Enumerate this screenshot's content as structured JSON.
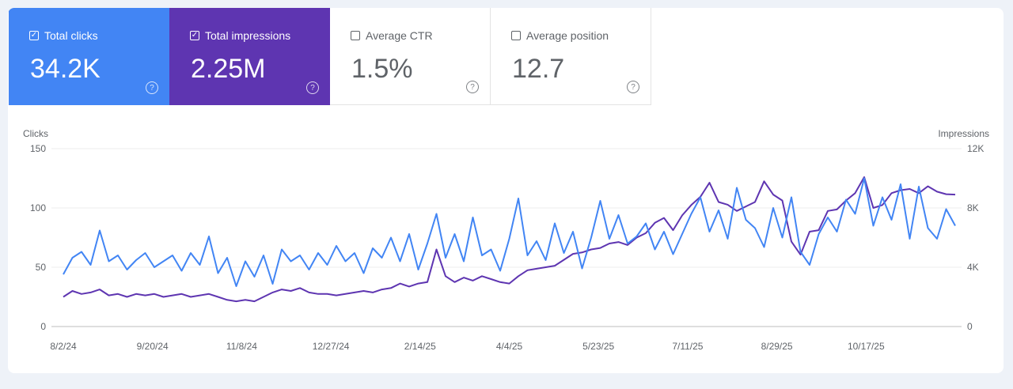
{
  "metrics": [
    {
      "label": "Total clicks",
      "value": "34.2K",
      "checked": true,
      "color": "#4285f4"
    },
    {
      "label": "Total impressions",
      "value": "2.25M",
      "checked": true,
      "color": "#5e35b1"
    },
    {
      "label": "Average CTR",
      "value": "1.5%",
      "checked": false
    },
    {
      "label": "Average position",
      "value": "12.7",
      "checked": false
    }
  ],
  "icons": {
    "checked": "checkbox-checked-icon",
    "unchecked": "checkbox-unchecked-icon",
    "help": "help-circle-icon"
  },
  "chart_data": {
    "type": "line",
    "ylabel_left": "Clicks",
    "ylabel_right": "Impressions",
    "ylim_left": [
      0,
      150
    ],
    "ylim_right": [
      0,
      12000
    ],
    "yticks_left": [
      "0",
      "50",
      "100",
      "150"
    ],
    "yticks_right": [
      "0",
      "4K",
      "8K",
      "12K"
    ],
    "xticks": [
      "8/2/24",
      "9/20/24",
      "11/8/24",
      "12/27/24",
      "2/14/25",
      "4/4/25",
      "5/23/25",
      "7/11/25",
      "8/29/25",
      "10/17/25"
    ],
    "x_start": "8/2/24",
    "x_step_days": 5,
    "grid": true,
    "series": [
      {
        "name": "Clicks",
        "axis": "left",
        "color": "#4285f4",
        "values": [
          44,
          58,
          63,
          52,
          81,
          55,
          60,
          48,
          56,
          62,
          50,
          55,
          60,
          47,
          62,
          52,
          76,
          45,
          58,
          34,
          55,
          42,
          60,
          36,
          65,
          55,
          60,
          48,
          62,
          52,
          68,
          55,
          62,
          45,
          66,
          58,
          75,
          55,
          78,
          48,
          70,
          95,
          58,
          78,
          55,
          92,
          60,
          65,
          47,
          74,
          108,
          60,
          72,
          56,
          87,
          62,
          80,
          49,
          75,
          106,
          74,
          94,
          70,
          76,
          87,
          65,
          80,
          61,
          78,
          95,
          109,
          80,
          98,
          74,
          117,
          90,
          83,
          67,
          100,
          75,
          109,
          63,
          52,
          78,
          92,
          80,
          107,
          95,
          125,
          85,
          109,
          90,
          120,
          74,
          118,
          83,
          74,
          99,
          85
        ]
      },
      {
        "name": "Impressions",
        "axis": "right",
        "color": "#5e35b1",
        "values": [
          2000,
          2400,
          2200,
          2300,
          2500,
          2100,
          2200,
          2000,
          2200,
          2100,
          2200,
          2000,
          2100,
          2200,
          2000,
          2100,
          2200,
          2000,
          1800,
          1700,
          1800,
          1700,
          2000,
          2300,
          2500,
          2400,
          2600,
          2300,
          2200,
          2200,
          2100,
          2200,
          2300,
          2400,
          2300,
          2500,
          2600,
          2900,
          2700,
          2900,
          3000,
          5200,
          3400,
          3000,
          3300,
          3100,
          3400,
          3200,
          3000,
          2900,
          3400,
          3800,
          3900,
          4000,
          4100,
          4500,
          4900,
          5000,
          5200,
          5300,
          5600,
          5700,
          5500,
          6000,
          6300,
          7000,
          7330,
          6500,
          7500,
          8200,
          8750,
          9700,
          8400,
          8220,
          7800,
          8100,
          8400,
          9800,
          8900,
          8500,
          5730,
          4850,
          6400,
          6500,
          7800,
          7900,
          8500,
          9000,
          10080,
          8000,
          8200,
          9000,
          9200,
          9280,
          9000,
          9460,
          9100,
          8930,
          8900
        ]
      }
    ]
  }
}
